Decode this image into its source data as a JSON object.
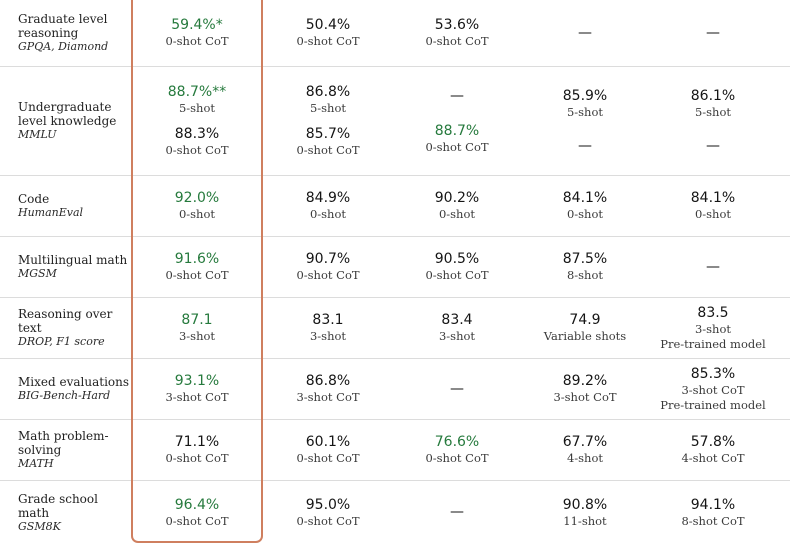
{
  "colors": {
    "best": "#267a3d",
    "highlight_border": "#cf7f5f",
    "divider": "#dcdcdc"
  },
  "rows": [
    {
      "name": "Graduate level reasoning",
      "sub": "GPQA, Diamond",
      "cells": [
        [
          {
            "value": "59.4%*",
            "shot": "0-shot CoT"
          }
        ],
        [
          {
            "value": "50.4%",
            "shot": "0-shot CoT"
          }
        ],
        [
          {
            "value": "53.6%",
            "shot": "0-shot CoT"
          }
        ],
        [
          {
            "value": "—"
          }
        ],
        [
          {
            "value": "—"
          }
        ]
      ]
    },
    {
      "name": "Undergraduate level knowledge",
      "sub": "MMLU",
      "cells": [
        [
          {
            "value": "88.7%**",
            "shot": "5-shot"
          },
          {
            "value": "88.3%",
            "shot": "0-shot CoT"
          }
        ],
        [
          {
            "value": "86.8%",
            "shot": "5-shot"
          },
          {
            "value": "85.7%",
            "shot": "0-shot CoT"
          }
        ],
        [
          {
            "value": "—"
          },
          {
            "value": "88.7%",
            "shot": "0-shot CoT"
          }
        ],
        [
          {
            "value": "85.9%",
            "shot": "5-shot"
          },
          {
            "value": "—"
          }
        ],
        [
          {
            "value": "86.1%",
            "shot": "5-shot"
          },
          {
            "value": "—"
          }
        ]
      ]
    },
    {
      "name": "Code",
      "sub": "HumanEval",
      "cells": [
        [
          {
            "value": "92.0%",
            "shot": "0-shot"
          }
        ],
        [
          {
            "value": "84.9%",
            "shot": "0-shot"
          }
        ],
        [
          {
            "value": "90.2%",
            "shot": "0-shot"
          }
        ],
        [
          {
            "value": "84.1%",
            "shot": "0-shot"
          }
        ],
        [
          {
            "value": "84.1%",
            "shot": "0-shot"
          }
        ]
      ]
    },
    {
      "name": "Multilingual math",
      "sub": "MGSM",
      "cells": [
        [
          {
            "value": "91.6%",
            "shot": "0-shot CoT"
          }
        ],
        [
          {
            "value": "90.7%",
            "shot": "0-shot CoT"
          }
        ],
        [
          {
            "value": "90.5%",
            "shot": "0-shot CoT"
          }
        ],
        [
          {
            "value": "87.5%",
            "shot": "8-shot"
          }
        ],
        [
          {
            "value": "—"
          }
        ]
      ]
    },
    {
      "name": "Reasoning over text",
      "sub": "DROP, F1 score",
      "cells": [
        [
          {
            "value": "87.1",
            "shot": "3-shot"
          }
        ],
        [
          {
            "value": "83.1",
            "shot": "3-shot"
          }
        ],
        [
          {
            "value": "83.4",
            "shot": "3-shot"
          }
        ],
        [
          {
            "value": "74.9",
            "shot": "Variable shots"
          }
        ],
        [
          {
            "value": "83.5",
            "shot": "3-shot",
            "note": "Pre-trained model"
          }
        ]
      ]
    },
    {
      "name": "Mixed evaluations",
      "sub": "BIG-Bench-Hard",
      "cells": [
        [
          {
            "value": "93.1%",
            "shot": "3-shot CoT"
          }
        ],
        [
          {
            "value": "86.8%",
            "shot": "3-shot CoT"
          }
        ],
        [
          {
            "value": "—"
          }
        ],
        [
          {
            "value": "89.2%",
            "shot": "3-shot CoT"
          }
        ],
        [
          {
            "value": "85.3%",
            "shot": "3-shot CoT",
            "note": "Pre-trained model"
          }
        ]
      ]
    },
    {
      "name": "Math problem-solving",
      "sub": "MATH",
      "cells": [
        [
          {
            "value": "71.1%",
            "shot": "0-shot CoT"
          }
        ],
        [
          {
            "value": "60.1%",
            "shot": "0-shot CoT"
          }
        ],
        [
          {
            "value": "76.6%",
            "shot": "0-shot CoT"
          }
        ],
        [
          {
            "value": "67.7%",
            "shot": "4-shot"
          }
        ],
        [
          {
            "value": "57.8%",
            "shot": "4-shot CoT"
          }
        ]
      ]
    },
    {
      "name": "Grade school math",
      "sub": "GSM8K",
      "cells": [
        [
          {
            "value": "96.4%",
            "shot": "0-shot CoT"
          }
        ],
        [
          {
            "value": "95.0%",
            "shot": "0-shot CoT"
          }
        ],
        [
          {
            "value": "—"
          }
        ],
        [
          {
            "value": "90.8%",
            "shot": "11-shot"
          }
        ],
        [
          {
            "value": "94.1%",
            "shot": "8-shot CoT"
          }
        ]
      ]
    }
  ]
}
